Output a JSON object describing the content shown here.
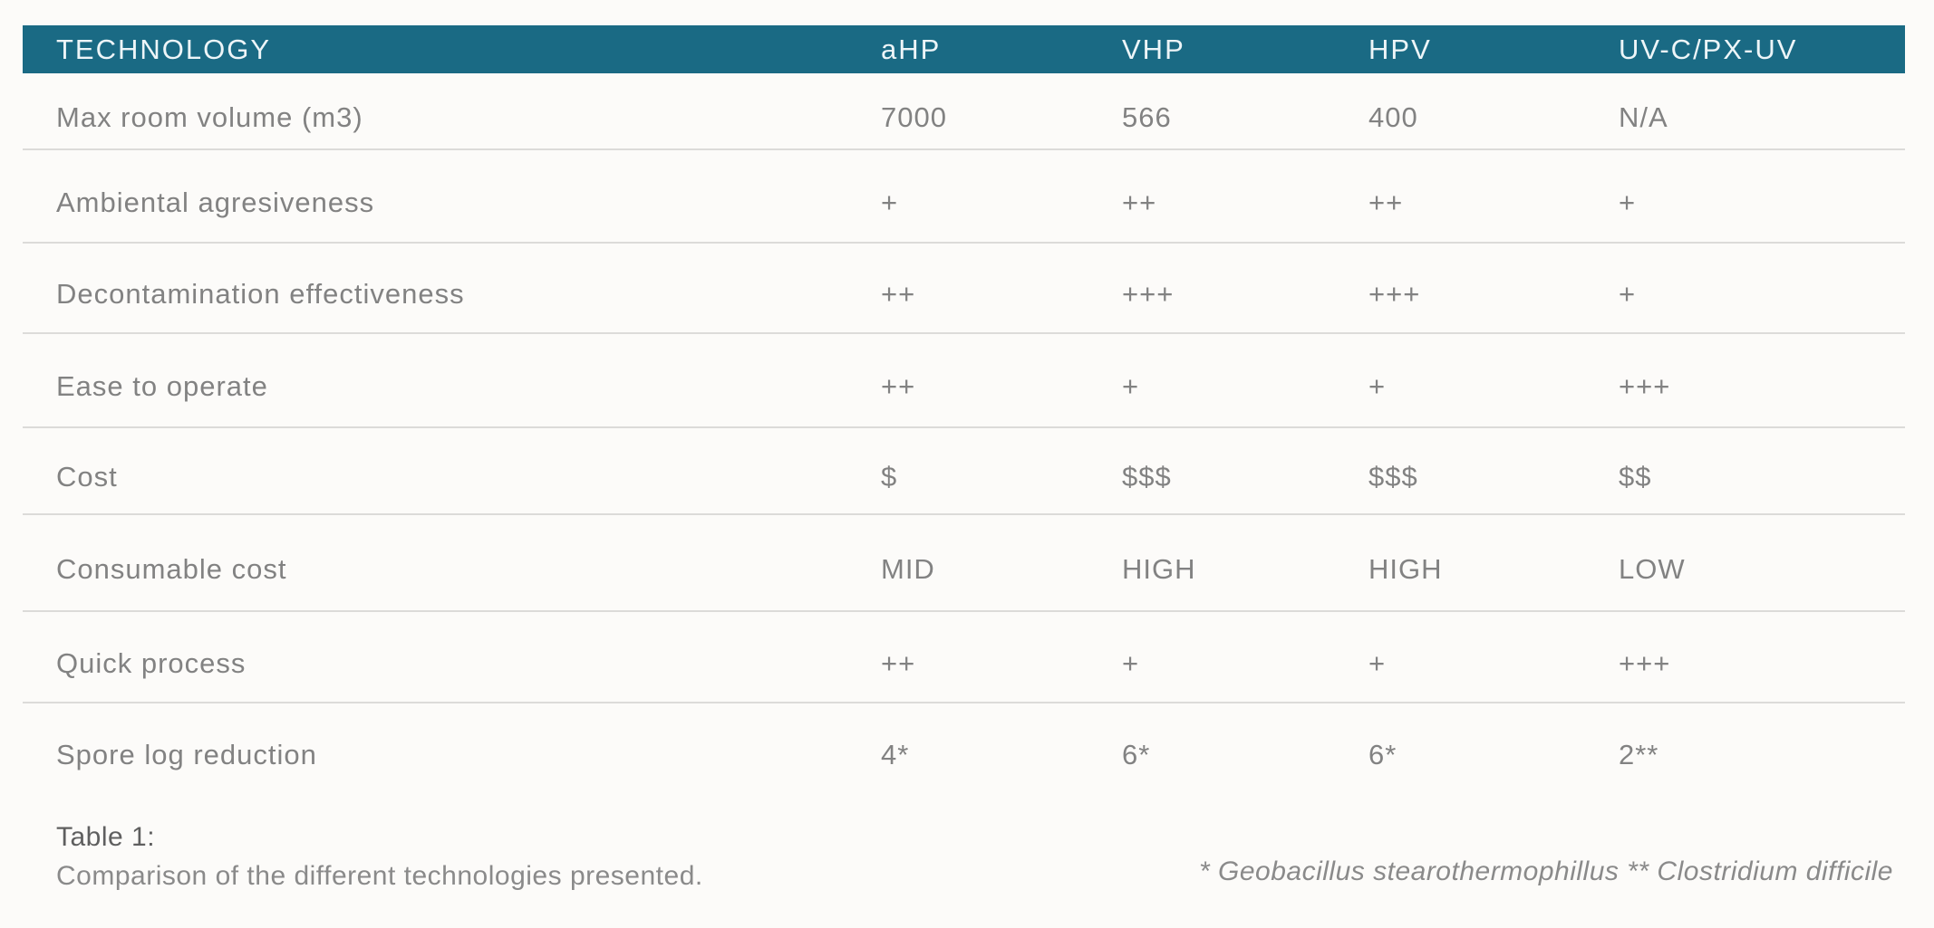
{
  "table": {
    "header": {
      "label": "TECHNOLOGY",
      "columns": [
        "aHP",
        "VHP",
        "HPV",
        "UV-C/PX-UV"
      ]
    },
    "rows": [
      {
        "label": "Max room volume (m3)",
        "values": [
          "7000",
          "566",
          "400",
          "N/A"
        ]
      },
      {
        "label": "Ambiental agresiveness",
        "values": [
          "+",
          "++",
          "++",
          "+"
        ]
      },
      {
        "label": "Decontamination effectiveness",
        "values": [
          "++",
          "+++",
          "+++",
          "+"
        ]
      },
      {
        "label": "Ease to operate",
        "values": [
          "++",
          "+",
          "+",
          "+++"
        ]
      },
      {
        "label": "Cost",
        "values": [
          "$",
          "$$$",
          "$$$",
          "$$"
        ]
      },
      {
        "label": "Consumable cost",
        "values": [
          "MID",
          "HIGH",
          "HIGH",
          "LOW"
        ]
      },
      {
        "label": "Quick process",
        "values": [
          "++",
          "+",
          "+",
          "+++"
        ]
      },
      {
        "label": "Spore log reduction",
        "values": [
          "4*",
          "6*",
          "6*",
          "2**"
        ]
      }
    ]
  },
  "caption": {
    "title": "Table 1:",
    "text": "Comparison of the different technologies presented."
  },
  "footnote": "* Geobacillus stearothermophillus ** Clostridium difficile",
  "colors": {
    "header_background": "#1a6a84",
    "header_text": "#edf5f8",
    "body_text": "#828282",
    "caption_title_text": "#5f5f5f",
    "separator": "#dcdbd9",
    "page_background": "#fcfbf9"
  }
}
